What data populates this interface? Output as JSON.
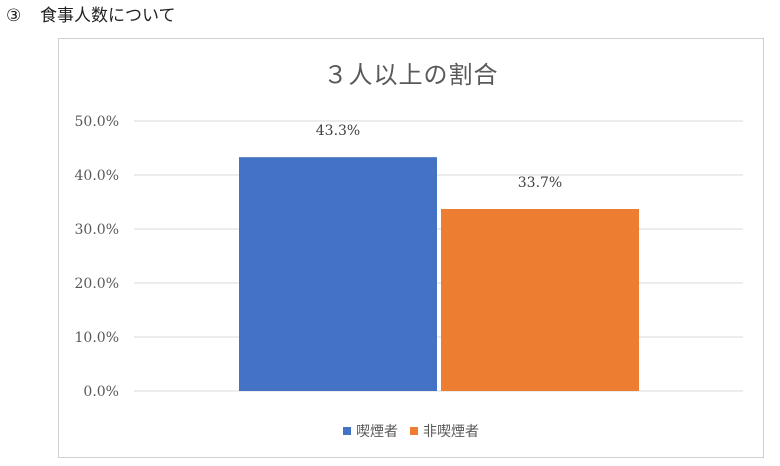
{
  "heading": {
    "number": "③",
    "text": "食事人数について"
  },
  "chart_data": {
    "type": "bar",
    "title": "３人以上の割合",
    "categories": [
      "喫煙者",
      "非喫煙者"
    ],
    "values": [
      43.3,
      33.7
    ],
    "data_labels": [
      "43.3%",
      "33.7%"
    ],
    "colors": [
      "#4472c4",
      "#ed7d31"
    ],
    "ylim": [
      0,
      50
    ],
    "yticks": [
      0,
      10,
      20,
      30,
      40,
      50
    ],
    "ytick_labels": [
      "0.0%",
      "10.0%",
      "20.0%",
      "30.0%",
      "40.0%",
      "50.0%"
    ],
    "grid": true,
    "legend": {
      "placement": "bottom",
      "entries": [
        "喫煙者",
        "非喫煙者"
      ]
    },
    "xlabel": "",
    "ylabel": ""
  }
}
